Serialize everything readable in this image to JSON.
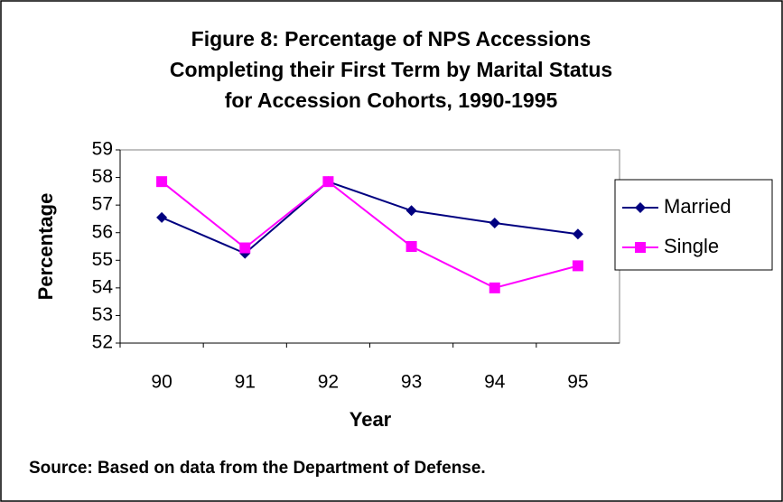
{
  "chart_data": {
    "type": "line",
    "title": [
      "Figure 8: Percentage of NPS Accessions",
      "Completing their First Term by Marital Status",
      "for Accession Cohorts, 1990-1995"
    ],
    "x_label": "Year",
    "y_label": "Percentage",
    "source": "Source: Based on data from the Department of Defense.",
    "categories": [
      "90",
      "91",
      "92",
      "93",
      "94",
      "95"
    ],
    "series": [
      {
        "name": "Married",
        "color": "#000080",
        "marker": "diamond",
        "values": [
          56.55,
          55.25,
          57.85,
          56.8,
          56.35,
          55.95
        ]
      },
      {
        "name": "Single",
        "color": "#ff00ff",
        "marker": "square",
        "values": [
          57.85,
          55.45,
          57.85,
          55.5,
          54.0,
          54.8
        ]
      }
    ],
    "ylim": [
      52,
      59
    ],
    "yticks": [
      52,
      53,
      54,
      55,
      56,
      57,
      58,
      59
    ],
    "grid": false,
    "legend": "right"
  }
}
